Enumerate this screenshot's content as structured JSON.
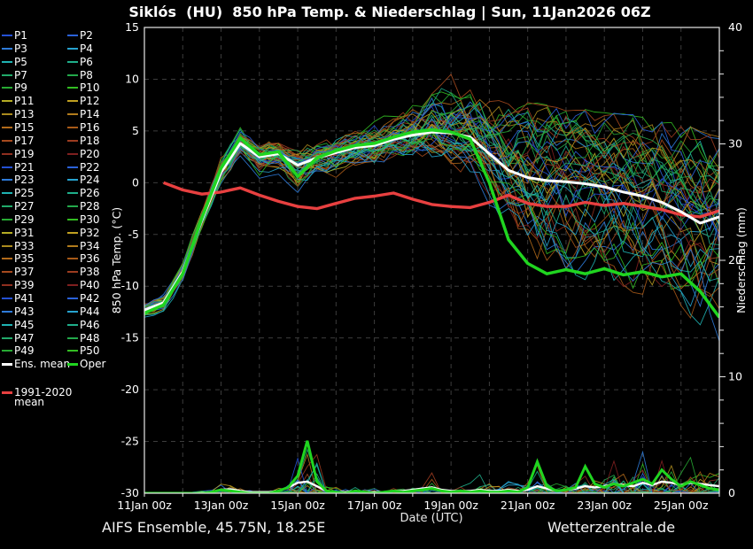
{
  "title": "Siklós  (HU)  850 hPa Temp. & Niederschlag | Sun, 11Jan2026 06Z",
  "footer": {
    "model_label": "AIFS Ensemble, 45.75N, 18.25E",
    "site_label": "Wetterzentrale.de"
  },
  "legend": {
    "members_labels": [
      "P1",
      "P2",
      "P3",
      "P4",
      "P5",
      "P6",
      "P7",
      "P8",
      "P9",
      "P10",
      "P11",
      "P12",
      "P13",
      "P14",
      "P15",
      "P16",
      "P17",
      "P18",
      "P19",
      "P20",
      "P21",
      "P22",
      "P23",
      "P24",
      "P25",
      "P26",
      "P27",
      "P28",
      "P29",
      "P30",
      "P31",
      "P32",
      "P33",
      "P34",
      "P35",
      "P36",
      "P37",
      "P38",
      "P39",
      "P40",
      "P41",
      "P42",
      "P43",
      "P44",
      "P45",
      "P46",
      "P47",
      "P48",
      "P49",
      "P50"
    ],
    "mean_label": "Ens. mean",
    "oper_label": "Oper",
    "climate_label_line1": "1991-2020",
    "climate_label_line2": "mean"
  },
  "colors": {
    "background": "#000000",
    "axis": "#e8e8e8",
    "grid": "#3d3d3d",
    "mean": "#ffffff",
    "oper": "#20d520",
    "climate": "#e84040",
    "member_palette": [
      "#2451d4",
      "#2b62d9",
      "#2e7bd9",
      "#27a3cf",
      "#1fb3b3",
      "#1fae8a",
      "#21aa6a",
      "#23a94b",
      "#27aa33",
      "#33bd22",
      "#b5ad24",
      "#c0a020",
      "#ab8b1e",
      "#b27c1c",
      "#b26a1a",
      "#a85a18",
      "#a64a1e",
      "#9c3c20",
      "#8f2f20",
      "#7f2020"
    ]
  },
  "chart_data": {
    "type": "line",
    "title": "Siklós (HU) 850 hPa Temp. & Niederschlag | Sun, 11Jan2026 06Z",
    "x_axis_label": "Date (UTC)",
    "x_range_days": [
      0,
      15
    ],
    "x_tick_labels": [
      "11Jan 00z",
      "13Jan 00z",
      "15Jan 00z",
      "17Jan 00z",
      "19Jan 00z",
      "21Jan 00z",
      "23Jan 00z",
      "25Jan 00z"
    ],
    "x_tick_days": [
      0,
      2,
      4,
      6,
      8,
      10,
      12,
      14
    ],
    "y_left": {
      "label": "850 hPa Temp. (°C)",
      "range": [
        -30,
        15
      ],
      "ticks": [
        15,
        10,
        5,
        0,
        -5,
        -10,
        -15,
        -20,
        -25,
        -30
      ]
    },
    "y_right": {
      "label": "Niederschlag (mm)",
      "range": [
        0,
        40
      ],
      "ticks": [
        0,
        10,
        20,
        30,
        40
      ],
      "minor_step": 2
    },
    "grid": "dashed, vertical every 1 day, horizontal every 5 °C",
    "members_count": 50,
    "time_step_days": 0.5,
    "ens_mean_temp": [
      -12.3,
      -11.6,
      -8.6,
      -3.6,
      1.0,
      3.8,
      2.5,
      2.8,
      1.7,
      2.4,
      2.9,
      3.4,
      3.6,
      4.2,
      4.6,
      4.9,
      4.8,
      4.4,
      2.8,
      1.2,
      0.5,
      0.2,
      0.1,
      -0.1,
      -0.4,
      -0.9,
      -1.3,
      -1.9,
      -2.8,
      -3.9,
      -3.3
    ],
    "oper_temp": [
      -12.6,
      -11.8,
      -8.8,
      -3.4,
      1.4,
      4.3,
      2.7,
      3.0,
      0.6,
      2.4,
      3.1,
      3.6,
      3.8,
      4.4,
      4.9,
      5.1,
      4.9,
      4.2,
      0.0,
      -5.5,
      -7.8,
      -8.8,
      -8.4,
      -8.8,
      -8.3,
      -8.9,
      -8.6,
      -9.1,
      -8.8,
      -10.5,
      -13.0
    ],
    "climate_mean_temp": {
      "start_day": 0.5,
      "step_days": 0.5,
      "values": [
        0.0,
        -0.7,
        -1.1,
        -0.9,
        -0.5,
        -1.2,
        -1.8,
        -2.3,
        -2.5,
        -2.0,
        -1.5,
        -1.3,
        -1.0,
        -1.6,
        -2.1,
        -2.3,
        -2.4,
        -1.9,
        -1.2,
        -2.0,
        -2.3,
        -2.3,
        -1.9,
        -2.2,
        -2.0,
        -2.3,
        -2.6,
        -3.1,
        -3.3,
        -2.7
      ]
    },
    "ensemble_env_min_temp": [
      -13.6,
      -13.0,
      -10.2,
      -5.2,
      -1.0,
      2.2,
      -0.7,
      0.0,
      -2.6,
      -0.5,
      -0.5,
      0.5,
      0.5,
      1.2,
      1.5,
      1.2,
      0.6,
      -0.2,
      -2.8,
      -5.8,
      -7.8,
      -8.8,
      -9.2,
      -9.4,
      -9.5,
      -10.2,
      -10.8,
      -11.2,
      -12.2,
      -13.6,
      -15.2
    ],
    "ensemble_env_max_temp": [
      -11.0,
      -10.2,
      -6.8,
      -1.8,
      2.8,
      5.8,
      4.2,
      4.6,
      4.4,
      4.6,
      5.0,
      5.4,
      6.4,
      7.2,
      8.4,
      9.8,
      10.4,
      9.6,
      8.9,
      8.1,
      7.7,
      7.3,
      7.1,
      6.9,
      6.7,
      6.5,
      6.3,
      5.9,
      5.5,
      5.1,
      4.5
    ],
    "precip_step_days": 0.25,
    "precip_member_max": [
      0.05,
      0.1,
      0.1,
      0.1,
      0.15,
      0.2,
      0.3,
      0.6,
      1.2,
      1.5,
      0.9,
      0.5,
      0.6,
      0.5,
      1.0,
      2.2,
      5.8,
      6.5,
      4.5,
      1.6,
      0.9,
      0.7,
      1.3,
      0.9,
      0.7,
      0.9,
      1.2,
      1.1,
      1.6,
      2.1,
      2.9,
      1.6,
      1.1,
      1.3,
      1.1,
      1.6,
      1.3,
      1.1,
      1.6,
      1.3,
      1.6,
      4.0,
      2.1,
      1.3,
      1.6,
      2.3,
      3.1,
      2.6,
      3.6,
      5.8,
      4.2,
      3.6,
      6.2,
      4.6,
      7.4,
      6.0,
      4.2,
      5.6,
      4.6,
      3.2,
      2.6
    ],
    "oper_precip": [
      0,
      0,
      0,
      0,
      0,
      0,
      0,
      0.1,
      0.3,
      0.2,
      0.1,
      0,
      0,
      0,
      0.2,
      0.5,
      1.5,
      4.5,
      1.0,
      0.2,
      0.1,
      0,
      0.2,
      0.1,
      0,
      0.1,
      0.2,
      0.1,
      0.2,
      0.3,
      0.4,
      0.2,
      0.1,
      0.2,
      0.1,
      0.2,
      0.1,
      0.1,
      0.2,
      0.1,
      0.5,
      2.7,
      0.6,
      0.2,
      0.3,
      0.5,
      2.3,
      0.8,
      0.5,
      0.8,
      0.6,
      0.9,
      1.2,
      0.8,
      2.0,
      1.2,
      0.6,
      1.0,
      0.7,
      0.4,
      0.3
    ],
    "ens_mean_precip": [
      0,
      0,
      0,
      0,
      0,
      0,
      0.05,
      0.1,
      0.3,
      0.35,
      0.2,
      0.1,
      0.1,
      0.1,
      0.2,
      0.5,
      0.9,
      1.0,
      0.6,
      0.2,
      0.1,
      0.1,
      0.2,
      0.1,
      0.1,
      0.1,
      0.2,
      0.2,
      0.3,
      0.4,
      0.5,
      0.3,
      0.2,
      0.2,
      0.2,
      0.3,
      0.2,
      0.2,
      0.3,
      0.2,
      0.3,
      0.6,
      0.4,
      0.2,
      0.3,
      0.4,
      0.6,
      0.5,
      0.6,
      0.8,
      0.7,
      0.6,
      0.9,
      0.7,
      1.0,
      0.9,
      0.7,
      0.9,
      0.8,
      0.7,
      0.6
    ]
  }
}
